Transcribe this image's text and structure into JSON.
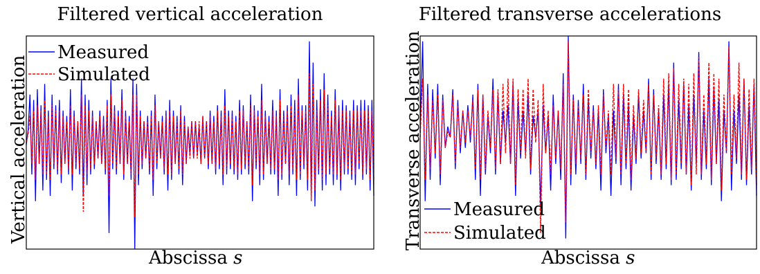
{
  "chart_data": [
    {
      "type": "line",
      "title": "Filtered vertical acceleration",
      "xlabel": "Abscissa",
      "xlabel_var": "s",
      "ylabel": "Vertical acceleration",
      "x_ticks": "none",
      "y_ticks": "none",
      "legend_position": "top-left",
      "grid": false,
      "ylim": [
        -1,
        1
      ],
      "series": [
        {
          "name": "Measured",
          "style": "solid",
          "color": "#0000ff",
          "values": [
            -0.02,
            0.12,
            0.45,
            -0.3,
            0.4,
            -0.55,
            0.5,
            -0.2,
            0.35,
            -0.45,
            0.55,
            -0.35,
            0.3,
            -0.5,
            0.45,
            -0.25,
            0.35,
            -0.3,
            0.4,
            -0.38,
            0.3,
            -0.2,
            0.25,
            -0.3,
            0.5,
            -0.45,
            0.3,
            -0.25,
            0.2,
            -0.3,
            0.6,
            -0.5,
            0.45,
            -0.4,
            0.4,
            -0.3,
            0.3,
            -0.25,
            0.2,
            -0.15,
            0.3,
            -0.2,
            0.25,
            -0.3,
            0.4,
            -0.85,
            0.6,
            -0.25,
            0.35,
            -0.3,
            0.3,
            -0.2,
            0.5,
            -0.35,
            0.3,
            -0.2,
            0.25,
            -0.35,
            0.6,
            -1.0,
            0.55,
            -0.4,
            0.3,
            -0.25,
            0.2,
            -0.15,
            0.25,
            -0.3,
            0.3,
            -0.5,
            0.45,
            -0.25,
            0.2,
            -0.15,
            0.25,
            -0.3,
            0.3,
            -0.45,
            0.4,
            -0.35,
            0.3,
            -0.2,
            0.25,
            -0.3,
            0.35,
            -0.4,
            0.25,
            -0.2,
            0.15,
            -0.1,
            0.2,
            -0.15,
            0.2,
            -0.1,
            0.15,
            -0.2,
            0.25,
            -0.15,
            0.2,
            -0.25,
            0.3,
            -0.2,
            0.25,
            -0.3,
            0.35,
            -0.25,
            0.3,
            -0.4,
            0.5,
            -0.3,
            0.3,
            -0.25,
            0.3,
            -0.3,
            0.25,
            -0.35,
            0.4,
            -0.3,
            0.35,
            -0.25,
            0.2,
            -0.3,
            0.45,
            -0.55,
            0.35,
            -0.25,
            0.3,
            -0.4,
            0.55,
            -0.35,
            0.3,
            -0.2,
            0.25,
            -0.3,
            0.4,
            -0.3,
            0.3,
            -0.5,
            0.5,
            -0.35,
            0.3,
            -0.2,
            0.35,
            -0.4,
            0.45,
            -0.3,
            0.4,
            -0.5,
            0.6,
            -0.35,
            0.35,
            -0.25,
            0.35,
            -0.45,
            0.95,
            -0.5,
            0.75,
            -0.6,
            0.4,
            -0.3,
            0.5,
            -0.45,
            0.65,
            -0.4,
            0.45,
            -0.3,
            0.3,
            -0.4,
            0.5,
            -0.35,
            0.35,
            -0.45,
            0.4,
            -0.3,
            0.35,
            -0.3,
            0.3,
            -0.35,
            0.4,
            -0.4,
            0.35,
            -0.25,
            0.4,
            -0.35,
            0.4,
            -0.3,
            0.35,
            -0.45,
            0.4,
            -0.5
          ]
        },
        {
          "name": "Simulated",
          "style": "dashed",
          "color": "#ff0000",
          "values": [
            0.0,
            0.08,
            0.25,
            -0.2,
            0.3,
            -0.35,
            0.35,
            -0.2,
            0.3,
            -0.3,
            0.4,
            -0.3,
            0.25,
            -0.35,
            0.35,
            -0.2,
            0.3,
            -0.25,
            0.3,
            -0.3,
            0.25,
            -0.2,
            0.2,
            -0.25,
            0.35,
            -0.3,
            0.25,
            -0.2,
            0.2,
            -0.25,
            0.45,
            -0.65,
            0.35,
            -0.3,
            0.3,
            -0.25,
            0.25,
            -0.2,
            0.2,
            -0.15,
            0.25,
            -0.2,
            0.2,
            -0.25,
            0.35,
            -0.5,
            0.45,
            -0.2,
            0.3,
            -0.25,
            0.25,
            -0.2,
            0.4,
            -0.3,
            0.25,
            -0.2,
            0.2,
            -0.3,
            0.45,
            -0.7,
            0.45,
            -0.3,
            0.25,
            -0.2,
            0.2,
            -0.15,
            0.2,
            -0.25,
            0.25,
            -0.35,
            0.35,
            -0.2,
            0.2,
            -0.15,
            0.2,
            -0.25,
            0.25,
            -0.3,
            0.3,
            -0.3,
            0.25,
            -0.2,
            0.2,
            -0.25,
            0.3,
            -0.3,
            0.2,
            -0.2,
            0.15,
            -0.15,
            0.2,
            -0.15,
            0.2,
            -0.15,
            0.2,
            -0.2,
            0.25,
            -0.15,
            0.2,
            -0.2,
            0.25,
            -0.2,
            0.2,
            -0.25,
            0.3,
            -0.2,
            0.25,
            -0.3,
            0.35,
            -0.25,
            0.25,
            -0.2,
            0.25,
            -0.25,
            0.2,
            -0.3,
            0.3,
            -0.25,
            0.3,
            -0.2,
            0.2,
            -0.25,
            0.35,
            -0.4,
            0.3,
            -0.2,
            0.25,
            -0.3,
            0.4,
            -0.3,
            0.25,
            -0.2,
            0.2,
            -0.25,
            0.3,
            -0.25,
            0.25,
            -0.35,
            0.4,
            -0.3,
            0.25,
            -0.2,
            0.3,
            -0.3,
            0.35,
            -0.25,
            0.3,
            -0.35,
            0.45,
            -0.3,
            0.3,
            -0.2,
            0.3,
            -0.35,
            0.65,
            -0.55,
            0.55,
            -0.45,
            0.3,
            -0.25,
            0.4,
            -0.35,
            0.5,
            -0.3,
            0.35,
            -0.25,
            0.25,
            -0.3,
            0.4,
            -0.3,
            0.3,
            -0.35,
            0.3,
            -0.25,
            0.3,
            -0.25,
            0.25,
            -0.3,
            0.3,
            -0.3,
            0.3,
            -0.2,
            0.3,
            -0.3,
            0.3,
            -0.25,
            0.3,
            -0.35,
            0.3,
            -0.35
          ]
        }
      ]
    },
    {
      "type": "line",
      "title": "Filtered transverse accelerations",
      "xlabel": "Abscissa",
      "xlabel_var": "s",
      "ylabel": "Transverse acceleration",
      "x_ticks": "none",
      "y_ticks": "none",
      "legend_position": "bottom-left",
      "grid": false,
      "ylim": [
        -1,
        1
      ],
      "series": [
        {
          "name": "Measured",
          "style": "solid",
          "color": "#0000ff",
          "values": [
            0.1,
            0.95,
            -0.55,
            0.55,
            -0.35,
            0.5,
            -0.15,
            0.55,
            -0.4,
            0.45,
            -0.05,
            0.15,
            0.05,
            0.5,
            -0.25,
            0.4,
            -0.1,
            0.3,
            -0.05,
            0.35,
            0.0,
            0.45,
            -0.35,
            0.55,
            -0.5,
            0.45,
            -0.3,
            0.25,
            -0.1,
            0.6,
            -0.3,
            0.45,
            -0.2,
            0.3,
            0.0,
            0.35,
            -0.2,
            0.55,
            -0.5,
            0.4,
            -0.15,
            0.3,
            -0.1,
            0.45,
            -0.3,
            0.25,
            0.05,
            0.3,
            -0.6,
            0.35,
            -0.1,
            0.25,
            -0.45,
            0.45,
            -0.2,
            0.3,
            -0.35,
            0.65,
            -0.9,
            1.0,
            -0.4,
            0.45,
            -0.3,
            0.4,
            -0.2,
            0.55,
            -0.35,
            0.4,
            -0.15,
            0.35,
            -0.25,
            0.3,
            -0.45,
            0.5,
            -0.1,
            0.25,
            -0.5,
            0.3,
            -0.2,
            0.55,
            -0.4,
            0.45,
            -0.25,
            0.35,
            -0.45,
            0.25,
            -0.2,
            0.45,
            -0.15,
            0.3,
            -0.1,
            0.6,
            -0.35,
            0.5,
            -0.2,
            0.3,
            -0.35,
            0.45,
            -0.25,
            0.55,
            -0.4,
            0.75,
            -0.35,
            0.4,
            -0.25,
            0.55,
            -0.3,
            0.35,
            -0.45,
            0.45,
            -0.2,
            0.85,
            -0.35,
            0.3,
            -0.25,
            0.6,
            -0.4,
            0.5,
            -0.2,
            0.4,
            -0.55,
            0.3,
            -0.1,
            0.95,
            -0.45,
            0.3,
            -0.2,
            0.45,
            -0.35,
            0.6,
            -0.4,
            0.35,
            -0.3,
            0.55,
            -0.5
          ]
        },
        {
          "name": "Simulated",
          "style": "dashed",
          "color": "#ff0000",
          "values": [
            0.05,
            0.6,
            -0.35,
            0.45,
            -0.25,
            0.4,
            -0.1,
            0.45,
            -0.3,
            0.4,
            -0.05,
            0.1,
            0.05,
            0.45,
            -0.2,
            0.35,
            -0.05,
            0.3,
            0.0,
            0.3,
            0.05,
            0.4,
            -0.25,
            0.5,
            -0.35,
            0.45,
            -0.25,
            0.3,
            -0.05,
            0.5,
            -0.25,
            0.5,
            -0.2,
            0.55,
            -0.1,
            0.6,
            -0.2,
            0.6,
            -0.4,
            0.5,
            -0.1,
            0.5,
            -0.15,
            0.6,
            -0.25,
            0.5,
            0.0,
            0.4,
            -0.85,
            0.55,
            -0.1,
            0.3,
            -0.3,
            0.35,
            -0.15,
            0.3,
            -0.25,
            0.55,
            -0.75,
            0.95,
            -0.3,
            0.4,
            -0.2,
            0.35,
            -0.15,
            0.45,
            -0.3,
            0.5,
            -0.1,
            0.3,
            -0.2,
            0.35,
            -0.3,
            0.45,
            -0.05,
            0.3,
            -0.3,
            0.55,
            -0.15,
            0.5,
            -0.3,
            0.55,
            -0.2,
            0.5,
            -0.35,
            0.35,
            -0.15,
            0.5,
            -0.1,
            0.4,
            -0.1,
            0.55,
            -0.3,
            0.45,
            -0.15,
            0.35,
            -0.3,
            0.6,
            -0.2,
            0.65,
            -0.35,
            0.7,
            -0.3,
            0.55,
            -0.2,
            0.6,
            -0.3,
            0.55,
            -0.4,
            0.65,
            -0.3,
            0.8,
            -0.3,
            0.45,
            -0.2,
            0.75,
            -0.35,
            0.65,
            -0.2,
            0.6,
            -0.45,
            0.45,
            -0.1,
            0.9,
            -0.3,
            0.45,
            -0.15,
            0.75,
            -0.3,
            0.6,
            -0.35,
            0.5,
            -0.25,
            0.6,
            -0.4
          ]
        }
      ]
    }
  ]
}
